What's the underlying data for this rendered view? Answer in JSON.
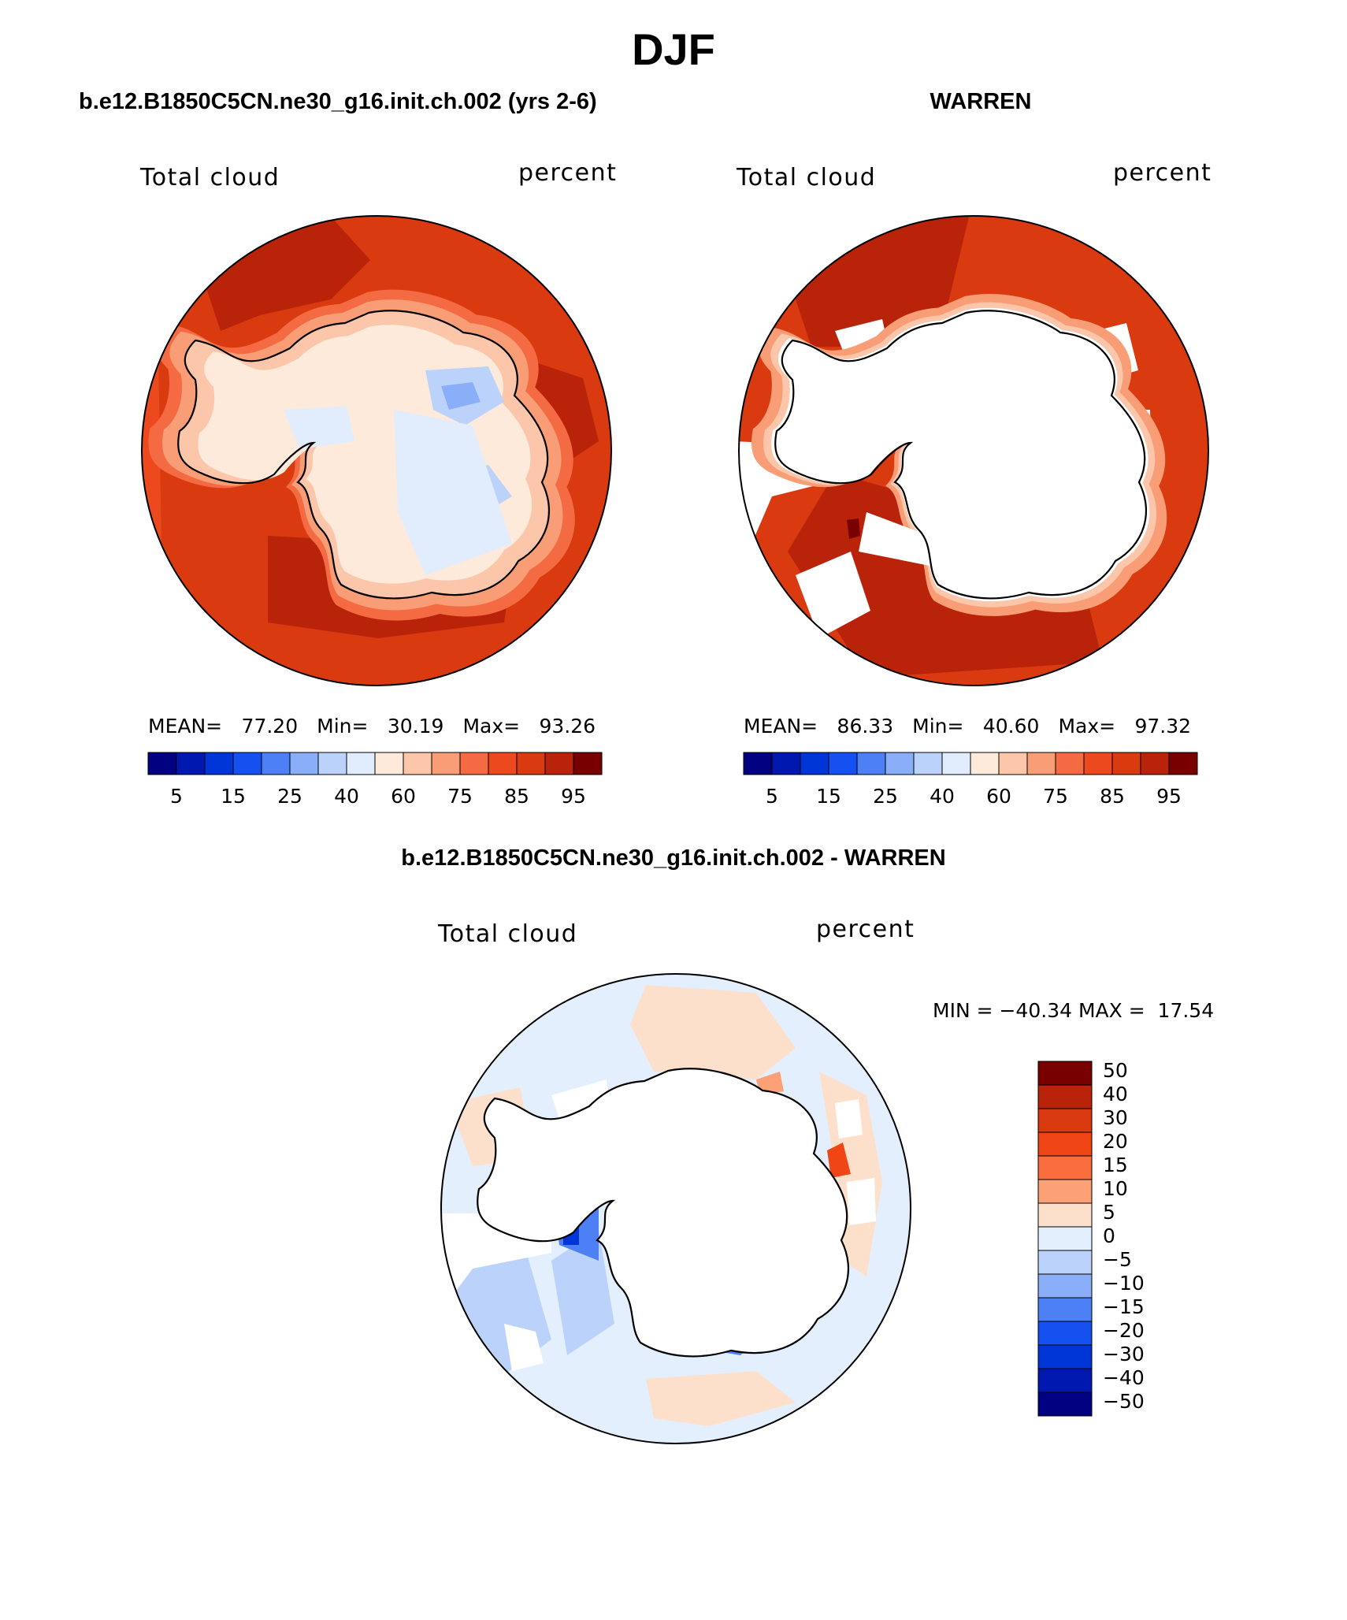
{
  "title": "DJF",
  "panels": [
    {
      "case": "b.e12.B1850C5CN.ne30_g16.init.ch.002 (yrs 2-6)",
      "variable": "Total cloud",
      "units": "percent",
      "mean_label": "MEAN=",
      "mean": "77.20",
      "min_label": "Min=",
      "min": "30.19",
      "max_label": "Max=",
      "max": "93.26"
    },
    {
      "case": "WARREN",
      "variable": "Total cloud",
      "units": "percent",
      "mean_label": "MEAN=",
      "mean": "86.33",
      "min_label": "Min=",
      "min": "40.60",
      "max_label": "Max=",
      "max": "97.32"
    },
    {
      "case": "b.e12.B1850C5CN.ne30_g16.init.ch.002 - WARREN",
      "variable": "Total cloud",
      "units": "percent",
      "stats_text": "MIN = −40.34 MAX =  17.54"
    }
  ],
  "colorbar_fields": {
    "colors": [
      "#000080",
      "#0018B0",
      "#0035D8",
      "#1550F0",
      "#4D7FF5",
      "#8AAEF8",
      "#BBD3FA",
      "#E1EDFC",
      "#FDEADB",
      "#FBC6A9",
      "#F89D75",
      "#F46B43",
      "#EC4A1E",
      "#D93A0F",
      "#B8230A",
      "#780000"
    ],
    "tick_labels": [
      "5",
      "15",
      "25",
      "40",
      "60",
      "75",
      "85",
      "95"
    ]
  },
  "colorbar_diff": {
    "colors": [
      "#780000",
      "#B8230A",
      "#D93A0F",
      "#F04515",
      "#FA6E3E",
      "#FBA077",
      "#FDE0CB",
      "#E3EFFC",
      "#BBD3FA",
      "#8AAEF8",
      "#4D7FF5",
      "#1550F0",
      "#0035D8",
      "#0018B0",
      "#000080"
    ],
    "tick_labels": [
      "50",
      "40",
      "30",
      "20",
      "15",
      "10",
      "5",
      "0",
      "−5",
      "−10",
      "−15",
      "−20",
      "−30",
      "−40",
      "−50"
    ]
  }
}
